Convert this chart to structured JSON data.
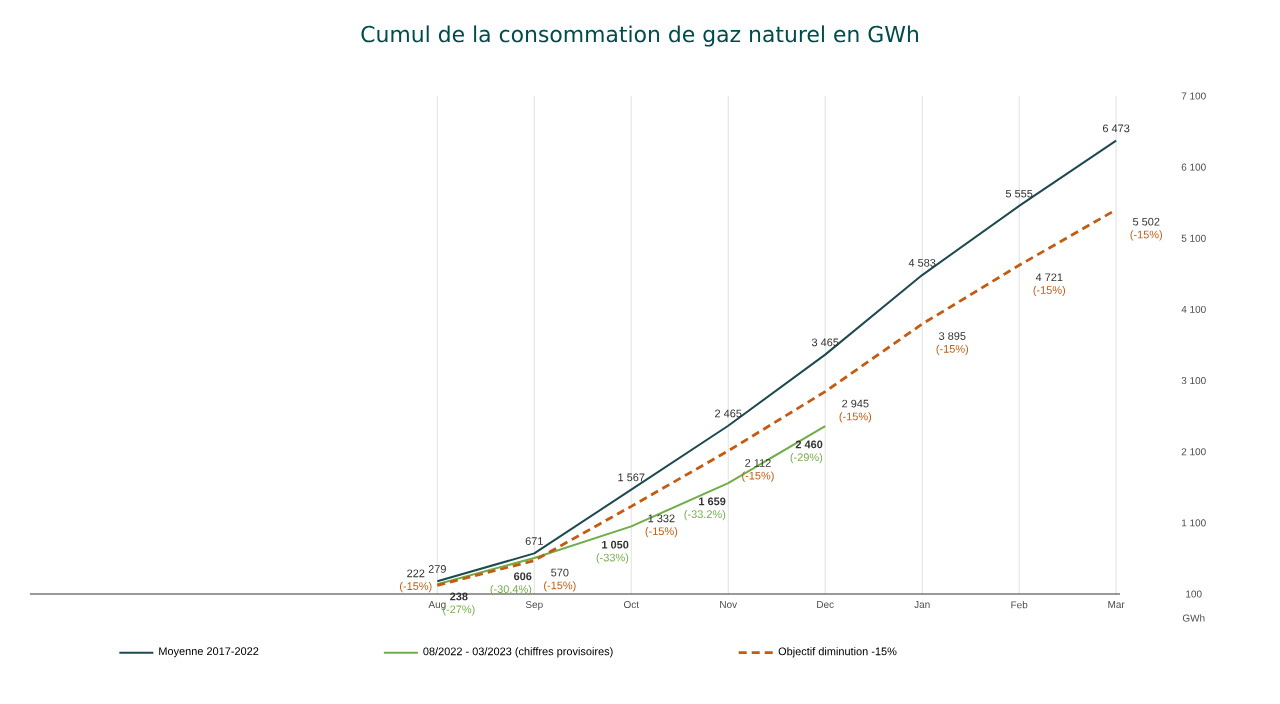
{
  "chart_data": {
    "type": "line",
    "title": "Cumul de la consommation de gaz naturel en GWh",
    "ylabel": "GWh",
    "categories": [
      "Aug",
      "Sep",
      "Oct",
      "Nov",
      "Dec",
      "Jan",
      "Feb",
      "Mar"
    ],
    "series": [
      {
        "name": "Moyenne 2017-2022",
        "color": "#1c4a4f",
        "line_style": "solid",
        "values": [
          279,
          671,
          1567,
          2465,
          3465,
          4583,
          5555,
          6473
        ],
        "value_labels": [
          "279",
          "671",
          "1 567",
          "2 465",
          "3 465",
          "4 583",
          "5 555",
          "6 473"
        ]
      },
      {
        "name": "08/2022 - 03/2023 (chiffres provisoires)",
        "color": "#70ad47",
        "line_style": "solid",
        "values": [
          238,
          606,
          1050,
          1659,
          2460,
          null,
          null,
          null
        ],
        "value_labels": [
          "238",
          "606",
          "1 050",
          "1 659",
          "2 460",
          null,
          null,
          null
        ]
      },
      {
        "name": "Objectif diminution -15%",
        "color": "#c55a11",
        "line_style": "dashed",
        "values": [
          222,
          570,
          1332,
          2112,
          2945,
          3895,
          4721,
          5502
        ],
        "value_labels": [
          "222",
          "570",
          "1 332",
          "2 112",
          "2 945",
          "3 895",
          "4 721",
          "5 502"
        ]
      }
    ],
    "annotations": [
      {
        "text": "(-27%)",
        "x": "Aug",
        "y": 238
      },
      {
        "text": "(-30.4%)",
        "x": "Sep",
        "y": 606
      },
      {
        "text": "(-33%)",
        "x": "Oct",
        "y": 1050
      },
      {
        "text": "(-33.2%)",
        "x": "Nov",
        "y": 1659
      },
      {
        "text": "(-29%)",
        "x": "Dec",
        "y": 2460
      },
      {
        "text": "(-15%)",
        "x": "Aug",
        "y": 222
      },
      {
        "text": "(-15%)",
        "x": "Sep",
        "y": 570
      },
      {
        "text": "(-15%)",
        "x": "Oct",
        "y": 1332
      },
      {
        "text": "(-15%)",
        "x": "Nov",
        "y": 2112
      },
      {
        "text": "(-15%)",
        "x": "Dec",
        "y": 2945
      },
      {
        "text": "(-15%)",
        "x": "Jan",
        "y": 3895
      },
      {
        "text": "(-15%)",
        "x": "Feb",
        "y": 4721
      },
      {
        "text": "(-15%)",
        "x": "Mar",
        "y": 5502
      }
    ],
    "ylim": [
      100,
      7100
    ],
    "yticks": [
      100,
      {
        "value": 1100,
        "label": "1 100"
      },
      {
        "value": 2100,
        "label": "2 100"
      },
      {
        "value": 3100,
        "label": "3 100"
      },
      {
        "value": 4100,
        "label": "4 100"
      },
      {
        "value": 5100,
        "label": "5 100"
      },
      {
        "value": 6100,
        "label": "6 100"
      },
      {
        "value": 7100,
        "label": "7 100"
      }
    ],
    "grid": "x",
    "legend": "bottom",
    "marker": "none"
  }
}
